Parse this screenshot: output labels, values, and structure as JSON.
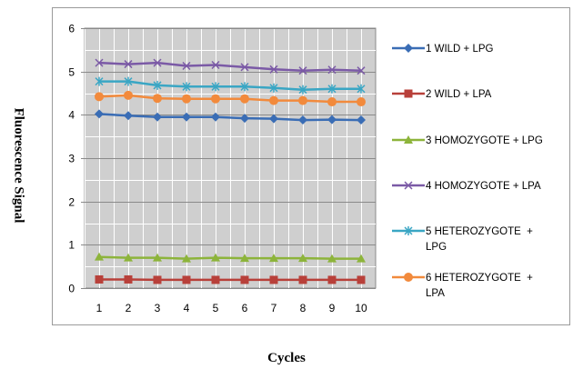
{
  "chart_data": {
    "type": "line",
    "xlabel": "Cycles",
    "ylabel": "Fluorescence Signal",
    "ylim": [
      0,
      6
    ],
    "y_ticks": [
      "0",
      "1",
      "2",
      "3",
      "4",
      "5",
      "6"
    ],
    "categories": [
      "1",
      "2",
      "3",
      "4",
      "5",
      "6",
      "7",
      "8",
      "9",
      "10"
    ],
    "grid": true,
    "plot_background": "#cfcfcf",
    "legend_position": "right",
    "series": [
      {
        "name": "1 WILD + LPG",
        "legend_lines": [
          "1 WILD + LPG"
        ],
        "color": "#3a6db5",
        "marker": "diamond",
        "values": [
          4.02,
          3.98,
          3.95,
          3.95,
          3.95,
          3.92,
          3.91,
          3.88,
          3.89,
          3.88
        ]
      },
      {
        "name": "2 WILD + LPA",
        "legend_lines": [
          "2 WILD + LPA"
        ],
        "color": "#b8403a",
        "marker": "square",
        "values": [
          0.2,
          0.2,
          0.19,
          0.19,
          0.19,
          0.19,
          0.19,
          0.19,
          0.19,
          0.19
        ]
      },
      {
        "name": "3 HOMOZYGOTE + LPG",
        "legend_lines": [
          "3 HOMOZYGOTE + LPG"
        ],
        "color": "#8db43b",
        "marker": "triangle",
        "values": [
          0.72,
          0.7,
          0.7,
          0.68,
          0.7,
          0.69,
          0.69,
          0.69,
          0.68,
          0.68
        ]
      },
      {
        "name": "4 HOMOZYGOTE + LPA",
        "legend_lines": [
          "4 HOMOZYGOTE + LPA"
        ],
        "color": "#7b5aa6",
        "marker": "x",
        "values": [
          5.2,
          5.17,
          5.2,
          5.13,
          5.15,
          5.1,
          5.05,
          5.02,
          5.04,
          5.02
        ]
      },
      {
        "name": "5 HETEROZYGOTE + LPG",
        "legend_lines": [
          "5 HETEROZYGOTE  +",
          "LPG"
        ],
        "color": "#3aa6c4",
        "marker": "star",
        "values": [
          4.77,
          4.77,
          4.68,
          4.65,
          4.65,
          4.65,
          4.62,
          4.58,
          4.6,
          4.6
        ]
      },
      {
        "name": "6 HETEROZYGOTE + LPA",
        "legend_lines": [
          "6 HETEROZYGOTE  +",
          "LPA"
        ],
        "color": "#f28a3c",
        "marker": "circle",
        "values": [
          4.42,
          4.45,
          4.38,
          4.37,
          4.37,
          4.37,
          4.33,
          4.33,
          4.3,
          4.3
        ]
      }
    ]
  }
}
